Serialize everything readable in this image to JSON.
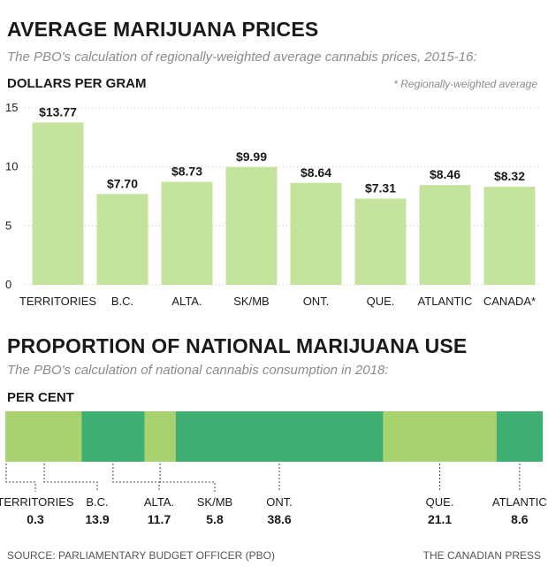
{
  "chart_data": [
    {
      "type": "bar",
      "title": "AVERAGE MARIJUANA PRICES",
      "subtitle": "The PBO's calculation of regionally-weighted average cannabis prices, 2015-16:",
      "ylabel": "DOLLARS PER GRAM",
      "note": "* Regionally-weighted average",
      "ylim": [
        0,
        15
      ],
      "yticks": [
        0,
        5,
        10,
        15
      ],
      "categories": [
        "TERRITORIES",
        "B.C.",
        "ALTA.",
        "SK/MB",
        "ONT.",
        "QUE.",
        "ATLANTIC",
        "CANADA*"
      ],
      "values": [
        13.77,
        7.7,
        8.73,
        9.99,
        8.64,
        7.31,
        8.46,
        8.32
      ],
      "data_labels": [
        "$13.77",
        "$7.70",
        "$8.73",
        "$9.99",
        "$8.64",
        "$7.31",
        "$8.46",
        "$8.32"
      ],
      "grid": true,
      "colors": {
        "bar": "#c4e39c",
        "grid": "#c8c8c8"
      }
    },
    {
      "type": "stacked-bar",
      "title": "PROPORTION OF NATIONAL MARIJUANA USE",
      "subtitle": "The PBO's calculation of national cannabis consumption in 2018:",
      "ylabel": "PER CENT",
      "categories": [
        "TERRITORIES",
        "B.C.",
        "ALTA.",
        "SK/MB",
        "ONT.",
        "QUE.",
        "ATLANTIC"
      ],
      "values": [
        0.3,
        13.9,
        11.7,
        5.8,
        38.6,
        21.1,
        8.6
      ],
      "value_labels": [
        "0.3",
        "13.9",
        "11.7",
        "5.8",
        "38.6",
        "21.1",
        "8.6"
      ],
      "colors": [
        "#a8d26e",
        "#a8d26e",
        "#3eae72",
        "#a8d26e",
        "#3eae72",
        "#a8d26e",
        "#3eae72"
      ]
    }
  ],
  "footer": {
    "source": "SOURCE: PARLIAMENTARY BUDGET OFFICER (PBO)",
    "credit": "THE CANADIAN PRESS"
  }
}
